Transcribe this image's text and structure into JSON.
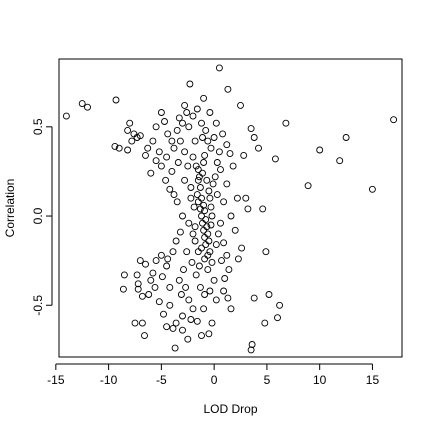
{
  "chart_data": {
    "type": "scatter",
    "title": "",
    "xlabel": "LOD Drop",
    "ylabel": "Correlation",
    "xlim": [
      -14.7,
      17.8
    ],
    "ylim": [
      -0.79,
      0.88
    ],
    "xticks": [
      -15,
      -10,
      -5,
      0,
      5,
      10,
      15
    ],
    "xtick_labels": [
      "-15",
      "-10",
      "-5",
      "0",
      "5",
      "10",
      "15"
    ],
    "yticks": [
      -0.5,
      0.0,
      0.5
    ],
    "ytick_labels": [
      "-0.5",
      "0.0",
      "0.5"
    ],
    "grid": false,
    "marker": "open-circle",
    "colors": {
      "points": "#000000",
      "background": "#ffffff",
      "frame": "#000000"
    },
    "points": [
      [
        -14.0,
        0.56
      ],
      [
        -12.5,
        0.63
      ],
      [
        -12.0,
        0.61
      ],
      [
        -9.3,
        0.65
      ],
      [
        -9.4,
        0.39
      ],
      [
        -9.0,
        0.38
      ],
      [
        -8.2,
        0.37
      ],
      [
        -7.8,
        0.42
      ],
      [
        -7.6,
        0.46
      ],
      [
        -7.3,
        0.44
      ],
      [
        -7.0,
        0.45
      ],
      [
        -8.0,
        0.52
      ],
      [
        -8.2,
        0.48
      ],
      [
        -6.5,
        0.34
      ],
      [
        -6.0,
        0.24
      ],
      [
        -5.5,
        0.31
      ],
      [
        -5.0,
        0.28
      ],
      [
        -4.5,
        0.33
      ],
      [
        -3.8,
        0.12
      ],
      [
        -3.5,
        0.08
      ],
      [
        -4.2,
        0.15
      ],
      [
        -3.3,
        0.55
      ],
      [
        -2.8,
        0.62
      ],
      [
        -2.3,
        0.74
      ],
      [
        -1.0,
        0.66
      ],
      [
        0.5,
        0.83
      ],
      [
        1.3,
        0.71
      ],
      [
        2.5,
        0.62
      ],
      [
        3.5,
        0.49
      ],
      [
        3.8,
        0.44
      ],
      [
        4.2,
        0.38
      ],
      [
        5.8,
        0.32
      ],
      [
        6.8,
        0.52
      ],
      [
        8.9,
        0.17
      ],
      [
        10.0,
        0.37
      ],
      [
        11.9,
        0.31
      ],
      [
        12.5,
        0.44
      ],
      [
        15.0,
        0.15
      ],
      [
        17.0,
        0.54
      ],
      [
        2.8,
        0.34
      ],
      [
        3.0,
        0.1
      ],
      [
        4.6,
        0.04
      ],
      [
        3.2,
        0.04
      ],
      [
        2.2,
        0.1
      ],
      [
        2.0,
        -0.08
      ],
      [
        2.6,
        -0.18
      ],
      [
        2.3,
        -0.24
      ],
      [
        4.9,
        -0.2
      ],
      [
        5.2,
        -0.44
      ],
      [
        3.8,
        -0.46
      ],
      [
        6.2,
        -0.5
      ],
      [
        4.8,
        -0.6
      ],
      [
        6.0,
        -0.57
      ],
      [
        3.6,
        -0.72
      ],
      [
        3.5,
        -0.75
      ],
      [
        1.6,
        -0.52
      ],
      [
        -0.5,
        -0.66
      ],
      [
        -1.2,
        -0.67
      ],
      [
        -2.5,
        -0.69
      ],
      [
        -3.7,
        -0.74
      ],
      [
        -3.9,
        -0.63
      ],
      [
        -4.5,
        -0.62
      ],
      [
        -6.8,
        -0.6
      ],
      [
        -7.5,
        -0.6
      ],
      [
        -6.6,
        -0.67
      ],
      [
        -6.2,
        -0.44
      ],
      [
        -6.8,
        -0.45
      ],
      [
        -7.2,
        -0.41
      ],
      [
        -8.6,
        -0.41
      ],
      [
        -8.5,
        -0.33
      ],
      [
        -7.2,
        -0.38
      ],
      [
        -7.3,
        -0.33
      ],
      [
        -5.5,
        -0.25
      ],
      [
        -5.0,
        -0.22
      ],
      [
        -4.5,
        -0.28
      ],
      [
        -4.2,
        -0.4
      ],
      [
        -3.6,
        -0.14
      ],
      [
        -3.2,
        -0.09
      ],
      [
        -6.5,
        -0.27
      ],
      [
        -7.0,
        -0.25
      ],
      [
        -5.8,
        -0.32
      ],
      [
        -6.0,
        -0.36
      ],
      [
        -5.2,
        -0.48
      ],
      [
        -4.8,
        -0.55
      ],
      [
        -4.2,
        -0.5
      ],
      [
        -3.6,
        -0.6
      ],
      [
        -3.0,
        -0.56
      ],
      [
        -2.4,
        -0.47
      ],
      [
        -2.0,
        -0.52
      ],
      [
        -1.6,
        -0.59
      ],
      [
        -0.9,
        -0.44
      ],
      [
        0.2,
        -0.47
      ],
      [
        -0.2,
        -0.6
      ],
      [
        1.0,
        -0.35
      ],
      [
        1.4,
        -0.3
      ],
      [
        0.7,
        -0.25
      ],
      [
        -5.5,
        0.5
      ],
      [
        -5.0,
        0.58
      ],
      [
        -4.7,
        0.53
      ],
      [
        -4.4,
        0.46
      ],
      [
        -4.0,
        0.42
      ],
      [
        -3.8,
        0.38
      ],
      [
        -3.5,
        0.48
      ],
      [
        -3.2,
        0.42
      ],
      [
        -2.8,
        0.36
      ],
      [
        -2.4,
        0.5
      ],
      [
        -2.0,
        0.56
      ],
      [
        -1.6,
        0.6
      ],
      [
        -1.2,
        0.52
      ],
      [
        -0.8,
        0.48
      ],
      [
        -0.4,
        0.58
      ],
      [
        0.2,
        0.52
      ],
      [
        0.8,
        0.46
      ],
      [
        1.2,
        0.4
      ],
      [
        1.5,
        0.35
      ],
      [
        1.8,
        0.28
      ],
      [
        1.2,
        0.18
      ],
      [
        0.9,
        0.08
      ],
      [
        0.6,
        -0.04
      ],
      [
        0.9,
        -0.15
      ],
      [
        1.2,
        -0.22
      ],
      [
        -2.5,
        0.28
      ],
      [
        -2.0,
        0.33
      ],
      [
        -1.5,
        0.26
      ],
      [
        -2.8,
        0.2
      ],
      [
        -2.2,
        0.16
      ],
      [
        -2.6,
        -0.2
      ],
      [
        -2.1,
        -0.26
      ],
      [
        -1.7,
        -0.33
      ],
      [
        -2.9,
        -0.3
      ],
      [
        -3.3,
        -0.36
      ],
      [
        -1.3,
        -0.4
      ],
      [
        -0.6,
        -0.3
      ],
      [
        0.0,
        -0.36
      ],
      [
        -0.9,
        0.34
      ],
      [
        -0.3,
        0.38
      ],
      [
        0.3,
        0.3
      ],
      [
        -1.8,
        0.42
      ],
      [
        -1.5,
        0.2
      ],
      [
        -1.3,
        0.16
      ],
      [
        -1.6,
        0.12
      ],
      [
        -1.2,
        0.1
      ],
      [
        -1.5,
        0.08
      ],
      [
        -1.0,
        0.06
      ],
      [
        -1.3,
        0.04
      ],
      [
        -0.9,
        0.03
      ],
      [
        -1.2,
        0.0
      ],
      [
        -0.8,
        -0.02
      ],
      [
        -1.1,
        -0.04
      ],
      [
        -0.7,
        -0.06
      ],
      [
        -1.0,
        -0.08
      ],
      [
        -0.6,
        -0.1
      ],
      [
        -0.9,
        -0.12
      ],
      [
        -0.5,
        -0.14
      ],
      [
        -0.8,
        -0.16
      ],
      [
        -1.2,
        -0.18
      ],
      [
        -1.4,
        0.22
      ],
      [
        -1.1,
        0.24
      ],
      [
        -0.7,
        0.2
      ],
      [
        -0.5,
        0.14
      ],
      [
        -0.4,
        0.1
      ],
      [
        -0.3,
        0.05
      ],
      [
        -0.2,
        0.0
      ],
      [
        -0.3,
        -0.05
      ],
      [
        -0.4,
        -0.2
      ],
      [
        -0.6,
        -0.22
      ],
      [
        -0.9,
        -0.24
      ],
      [
        -1.5,
        -0.2
      ],
      [
        -1.8,
        -0.14
      ],
      [
        -2.0,
        -0.1
      ],
      [
        -1.9,
        0.05
      ],
      [
        -2.2,
        0.1
      ],
      [
        -1.7,
        0.28
      ],
      [
        -1.0,
        0.3
      ],
      [
        -3.0,
        0.0
      ],
      [
        -2.4,
        -0.04
      ],
      [
        -1.8,
        -0.06
      ],
      [
        -0.1,
        0.18
      ],
      [
        0.1,
        0.22
      ],
      [
        0.3,
        0.12
      ],
      [
        0.4,
        -0.1
      ],
      [
        0.2,
        -0.16
      ],
      [
        -0.2,
        -0.26
      ],
      [
        -1.4,
        -0.28
      ],
      [
        -4.0,
        0.25
      ],
      [
        -3.4,
        0.3
      ],
      [
        -4.6,
        0.2
      ],
      [
        -3.9,
        -0.2
      ],
      [
        -4.4,
        -0.24
      ],
      [
        -3.1,
        -0.44
      ],
      [
        -2.7,
        -0.4
      ],
      [
        -1.0,
        -0.52
      ],
      [
        -0.4,
        -0.42
      ],
      [
        0.6,
        0.26
      ],
      [
        1.6,
        0.0
      ],
      [
        -5.8,
        0.42
      ],
      [
        -6.3,
        0.38
      ],
      [
        -5.2,
        0.36
      ],
      [
        -4.9,
        -0.34
      ],
      [
        -5.6,
        -0.4
      ],
      [
        -3.0,
        -0.64
      ],
      [
        -2.2,
        -0.58
      ],
      [
        -1.1,
        0.44
      ],
      [
        -0.6,
        0.42
      ],
      [
        0.5,
        0.36
      ],
      [
        0.0,
        0.44
      ],
      [
        -2.6,
        0.58
      ],
      [
        -3.0,
        0.52
      ],
      [
        0.9,
        -0.42
      ],
      [
        1.3,
        -0.46
      ]
    ]
  }
}
